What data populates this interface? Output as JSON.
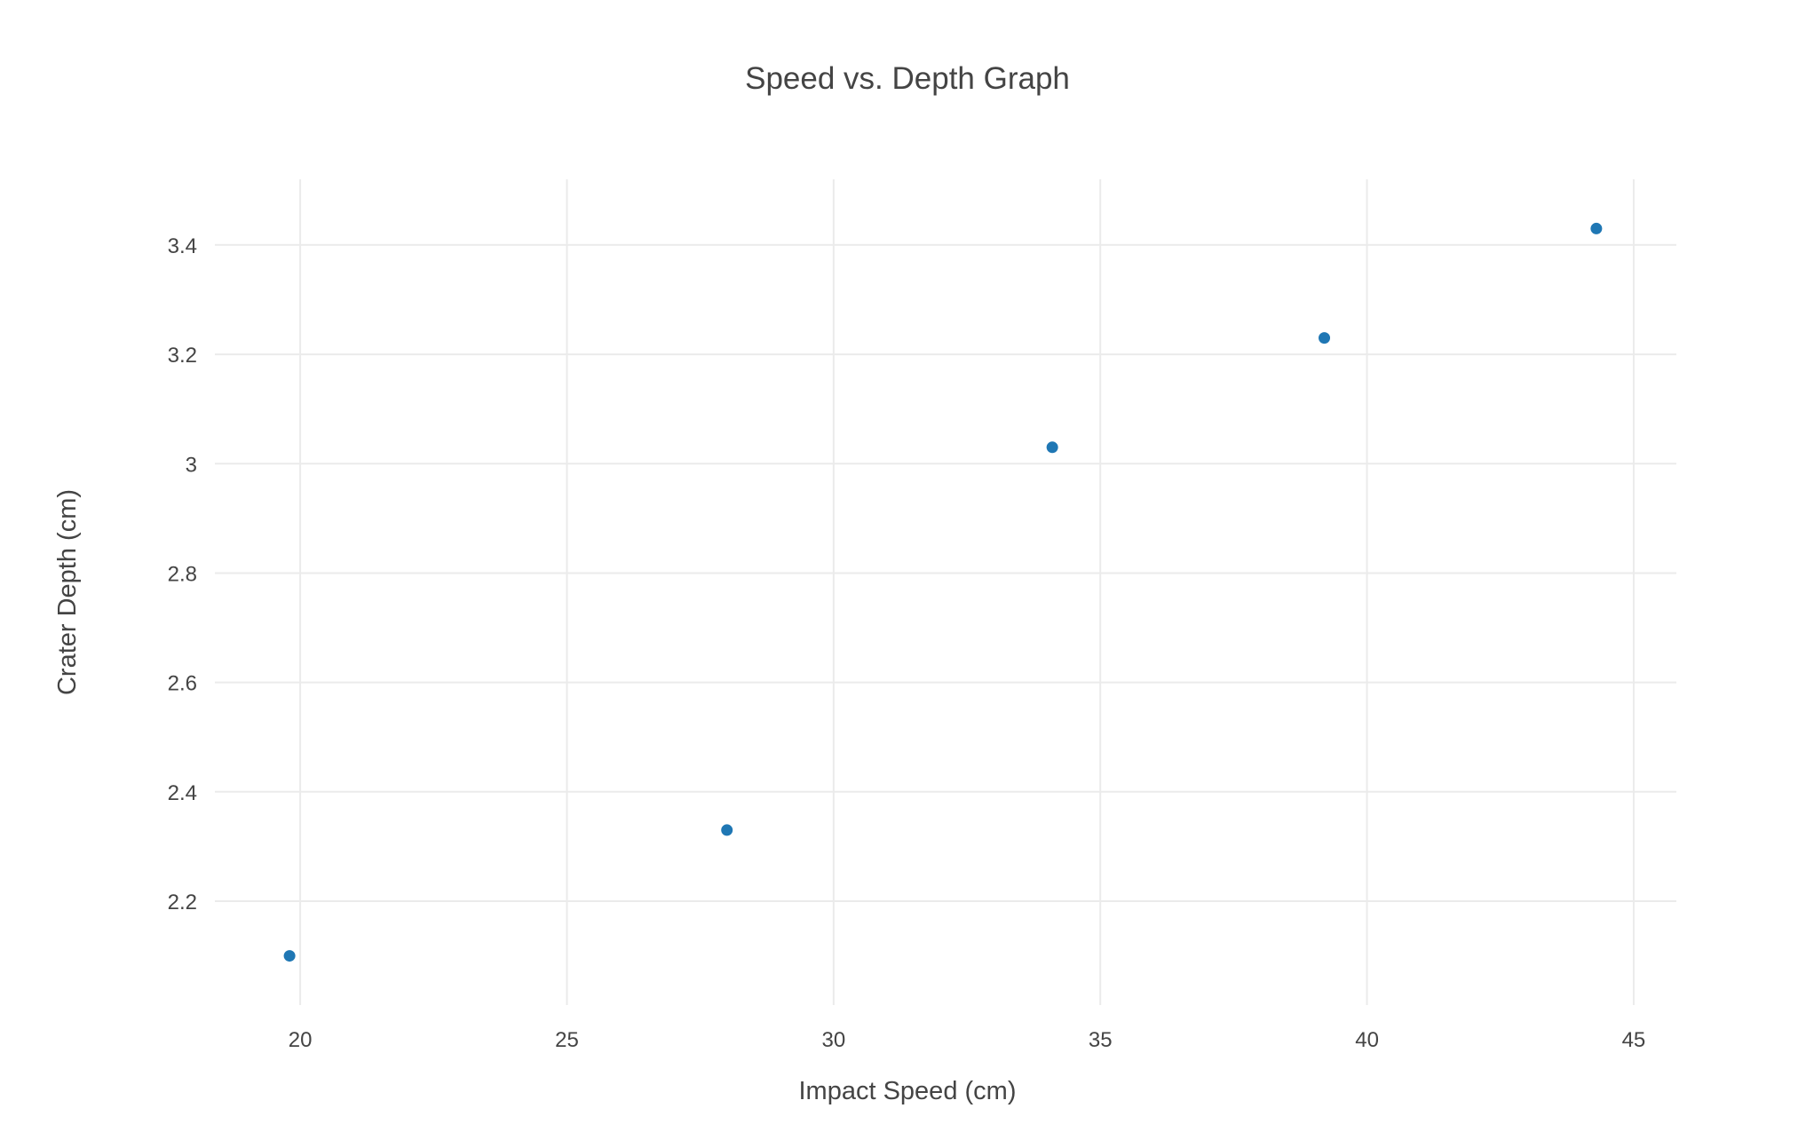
{
  "chart_data": {
    "type": "scatter",
    "title": "Speed vs. Depth Graph",
    "xlabel": "Impact Speed (cm)",
    "ylabel": "Crater Depth (cm)",
    "xlim": [
      18.4,
      45.8
    ],
    "ylim": [
      2.01,
      3.52
    ],
    "xticks": [
      20,
      25,
      30,
      35,
      40,
      45
    ],
    "xtick_labels": [
      "20",
      "25",
      "30",
      "35",
      "40",
      "45"
    ],
    "yticks": [
      2.2,
      2.4,
      2.6,
      2.8,
      3.0,
      3.2,
      3.4
    ],
    "ytick_labels": [
      "2.2",
      "2.4",
      "2.6",
      "2.8",
      "3",
      "3.2",
      "3.4"
    ],
    "grid": true,
    "legend": "none",
    "marker_color": "#1f77b4",
    "series": [
      {
        "x": [
          19.8,
          28.0,
          34.1,
          39.2,
          44.3
        ],
        "y": [
          2.1,
          2.33,
          3.03,
          3.23,
          3.43
        ]
      }
    ]
  }
}
